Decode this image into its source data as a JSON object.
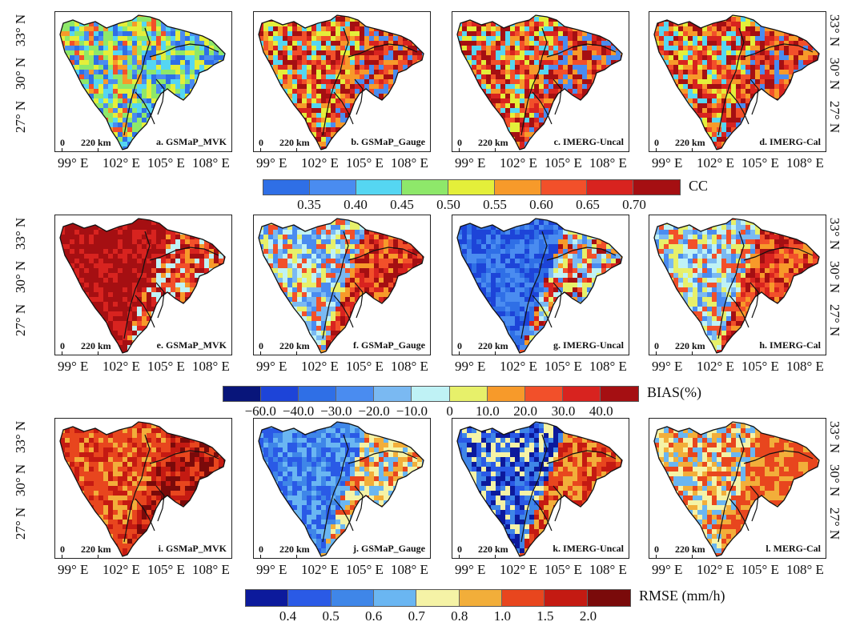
{
  "rows": [
    {
      "metric": "CC",
      "panels": [
        {
          "label": "a. GSMaP_MVK",
          "palette": "cc_mixed"
        },
        {
          "label": "b. GSMaP_Gauge",
          "palette": "cc_warm"
        },
        {
          "label": "c. IMERG-Uncal",
          "palette": "cc_warm"
        },
        {
          "label": "d. IMERG-Cal",
          "palette": "cc_warm"
        }
      ],
      "colorbar": {
        "title": "CC",
        "colors": [
          "#2f6fe6",
          "#4a8cf0",
          "#55d6f2",
          "#8ee86a",
          "#e4ef3a",
          "#f79a2a",
          "#f2502a",
          "#d8231f",
          "#a50f12"
        ],
        "labels": [
          "0.35",
          "0.40",
          "0.45",
          "0.50",
          "0.55",
          "0.60",
          "0.65",
          "0.70"
        ]
      }
    },
    {
      "metric": "BIAS",
      "panels": [
        {
          "label": "e. GSMaP_MVK",
          "palette": "bias_high"
        },
        {
          "label": "f. GSMaP_Gauge",
          "palette": "bias_mixed"
        },
        {
          "label": "g. IMERG-Uncal",
          "palette": "bias_low"
        },
        {
          "label": "h. IMERG-Cal",
          "palette": "bias_mixed"
        }
      ],
      "colorbar": {
        "title": "BIAS(%)",
        "colors": [
          "#08157a",
          "#1d44d8",
          "#2f6fe6",
          "#4a8cf0",
          "#7ab9f2",
          "#bff2f5",
          "#e7f06a",
          "#f79a2a",
          "#f2502a",
          "#d8231f",
          "#a50f12"
        ],
        "labels": [
          "−60.0",
          "−40.0",
          "−30.0",
          "−20.0",
          "−10.0",
          "0",
          "10.0",
          "20.0",
          "30.0",
          "40.0"
        ]
      }
    },
    {
      "metric": "RMSE",
      "panels": [
        {
          "label": "i. GSMaP_MVK",
          "palette": "rmse_high"
        },
        {
          "label": "j. GSMaP_Gauge",
          "palette": "rmse_low"
        },
        {
          "label": "k. IMERG-Uncal",
          "palette": "rmse_split"
        },
        {
          "label": "l. MERG-Cal",
          "palette": "rmse_split2"
        }
      ],
      "colorbar": {
        "title": "RMSE (mm/h)",
        "colors": [
          "#0c1a9c",
          "#2a5ae6",
          "#3f86e8",
          "#6ab6f2",
          "#f5f3a6",
          "#f2ae3a",
          "#e8461e",
          "#c41a12",
          "#7a0a0a"
        ],
        "labels": [
          "0.4",
          "0.5",
          "0.6",
          "0.7",
          "0.8",
          "1.0",
          "1.5",
          "2.0"
        ]
      }
    }
  ],
  "axes": {
    "x_ticks": [
      "99° E",
      "102° E",
      "105° E",
      "108° E"
    ],
    "y_ticks": [
      "27° N",
      "30° N",
      "33° N"
    ]
  },
  "scalebar": {
    "zero": "0",
    "distance": "220 km"
  }
}
